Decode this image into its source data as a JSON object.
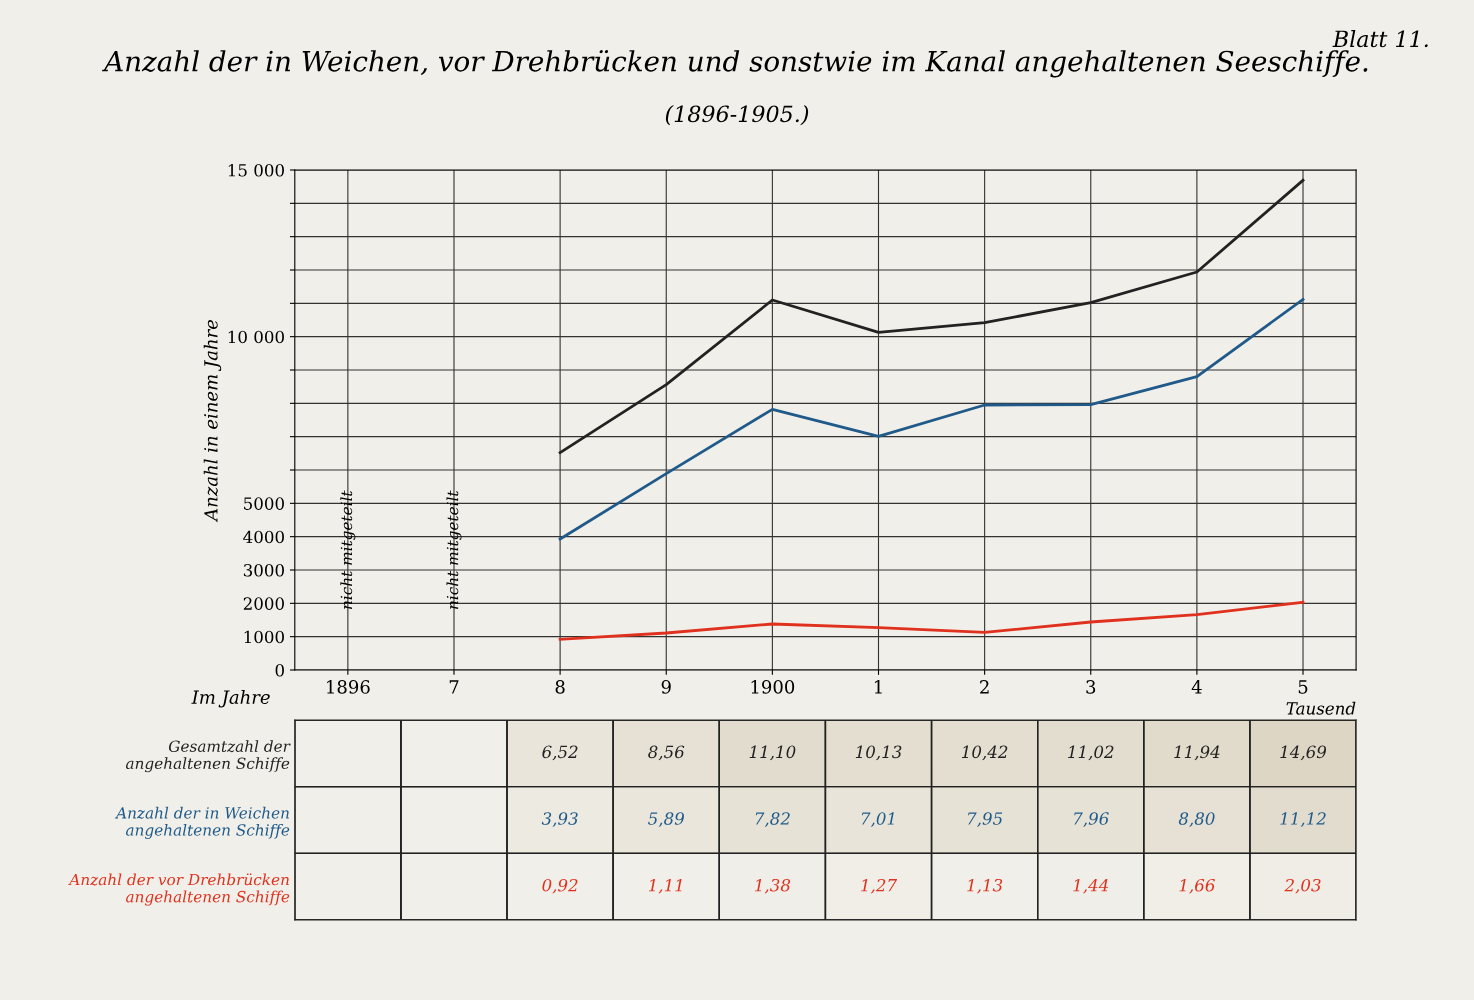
{
  "chart_data": [
    {
      "type": "line",
      "title": "Anzahl der in Weichen, vor Drehbrücken und sonstwie im Kanal angehaltenen Seeschiffe.",
      "subtitle": "(1896-1905.)",
      "xlabel": "Im Jahre",
      "ylabel": "Anzahl in einem Jahre",
      "categories": [
        "1896",
        "7",
        "8",
        "9",
        "1900",
        "1",
        "2",
        "3",
        "4",
        "5"
      ],
      "series": [
        {
          "color": "#222222",
          "values": [
            null,
            null,
            6520,
            8560,
            11100,
            10130,
            10420,
            11020,
            11940,
            14690
          ]
        },
        {
          "color": "#1f5a8a",
          "values": [
            null,
            null,
            3930,
            5890,
            7820,
            7010,
            7950,
            7960,
            8800,
            11120
          ]
        },
        {
          "color": "#e0301e",
          "values": [
            null,
            null,
            920,
            1110,
            1380,
            1270,
            1130,
            1440,
            1660,
            2030
          ]
        }
      ],
      "ylim": [
        0,
        15000
      ],
      "yticks": [
        0,
        1000,
        2000,
        3000,
        4000,
        5000,
        {
          "value": 6000,
          "label": null
        },
        {
          "value": 7000,
          "label": null
        },
        {
          "value": 8000,
          "label": null
        },
        {
          "value": 9000,
          "label": null
        },
        {
          "value": 10000,
          "label": "10 000"
        },
        {
          "value": 11000,
          "label": null
        },
        {
          "value": 12000,
          "label": null
        },
        {
          "value": 13000,
          "label": null
        },
        {
          "value": 14000,
          "label": null
        },
        {
          "value": 15000,
          "label": "15 000"
        }
      ],
      "grid": true,
      "legend": false,
      "marker": "none",
      "line_style": "solid",
      "annotations": [
        "nicht mitgeteilt",
        "nicht mitgeteilt",
        "Blatt 11."
      ]
    },
    {
      "type": "heatmap",
      "title": "Tausend",
      "categories": [
        "1896",
        "7",
        "8",
        "9",
        "1900",
        "1",
        "2",
        "3",
        "4",
        "5"
      ],
      "tick_labels": "y",
      "y_categories": [
        "Gesamtzahl der angehaltenen Schiffe",
        "Anzahl der in Weichen angehaltenen Schiffe",
        "Anzahl der vor Drehbrücken angehaltenen Schiffe"
      ],
      "colors": [
        "#222222",
        "#1f5a8a",
        "#e0301e"
      ],
      "cells": [
        [
          null,
          null,
          6.52,
          8.56,
          11.1,
          10.13,
          10.42,
          11.02,
          11.94,
          14.69
        ],
        [
          null,
          null,
          3.93,
          5.89,
          7.82,
          7.01,
          7.95,
          7.96,
          8.8,
          11.12
        ],
        [
          null,
          null,
          0.92,
          1.11,
          1.38,
          1.27,
          1.13,
          1.44,
          1.66,
          2.03
        ]
      ],
      "cell_labels": [
        [
          null,
          null,
          "6,52",
          "8,56",
          "11,10",
          "10,13",
          "10,42",
          "11,02",
          "11,94",
          "14,69"
        ],
        [
          null,
          null,
          "3,93",
          "5,89",
          "7,82",
          "7,01",
          "7,95",
          "7,96",
          "8,80",
          "11,12"
        ],
        [
          null,
          null,
          "0,92",
          "1,11",
          "1,38",
          "1,27",
          "1,13",
          "1,44",
          "1,66",
          "2,03"
        ]
      ]
    }
  ]
}
